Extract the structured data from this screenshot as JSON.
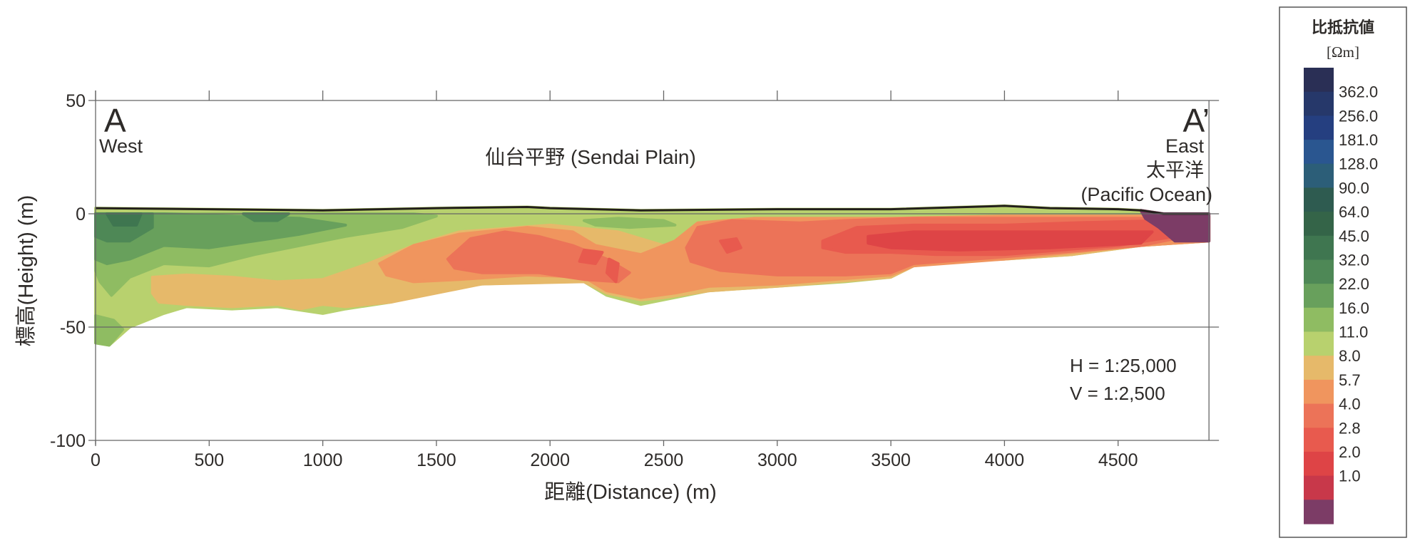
{
  "chart_data": {
    "type": "heatmap",
    "subtype": "resistivity cross-section",
    "title": "仙台平野 (Sendai Plain)",
    "xlabel": "距離(Distance) (m)",
    "ylabel": "標高(Height) (m)",
    "xlim": [
      0,
      4900
    ],
    "ylim": [
      -100,
      50
    ],
    "x_ticks": [
      0,
      500,
      1000,
      1500,
      2000,
      2500,
      3000,
      3500,
      4000,
      4500
    ],
    "x_tick_labels": [
      "0",
      "500",
      "1000",
      "1500",
      "2000",
      "2500",
      "3000",
      "3500",
      "4000",
      "4500"
    ],
    "y_ticks": [
      50,
      0,
      -50,
      -100
    ],
    "y_tick_labels": [
      "50",
      "0",
      "-50",
      "-100"
    ],
    "grid": "horizontal at y ticks",
    "annotations": {
      "left_point": "A",
      "left_dir": "West",
      "right_point": "A’",
      "right_dir": "East",
      "right_place_jp": "太平洋",
      "right_place_en": "(Pacific Ocean)",
      "scale_h": "H = 1:25,000",
      "scale_v": "V = 1:2,500"
    },
    "colorbar": {
      "title": "比抵抗値",
      "unit": "[Ωm]",
      "levels": [
        "362.0",
        "256.0",
        "181.0",
        "128.0",
        "90.0",
        "64.0",
        "45.0",
        "32.0",
        "22.0",
        "16.0",
        "11.0",
        "8.0",
        "5.7",
        "4.0",
        "2.8",
        "2.0",
        "1.0"
      ],
      "colors": [
        "#2a2f55",
        "#26386a",
        "#253f80",
        "#2a5690",
        "#2c5e78",
        "#2e5b50",
        "#346448",
        "#3f7650",
        "#4e8856",
        "#68a05c",
        "#8fbc62",
        "#b8d16e",
        "#e6b96a",
        "#f0955e",
        "#ec7358",
        "#e85a4e",
        "#de4446",
        "#c8384a",
        "#7c3c66"
      ],
      "legend_position": "right"
    },
    "topography": [
      [
        0,
        2.5
      ],
      [
        500,
        2
      ],
      [
        1000,
        1.5
      ],
      [
        1500,
        2.5
      ],
      [
        1900,
        3
      ],
      [
        2000,
        2.5
      ],
      [
        2400,
        1.5
      ],
      [
        3000,
        2
      ],
      [
        3500,
        2
      ],
      [
        4000,
        3.5
      ],
      [
        4200,
        2.5
      ],
      [
        4500,
        2
      ],
      [
        4600,
        1.5
      ],
      [
        4700,
        0
      ],
      [
        4900,
        0
      ]
    ],
    "data_bottom": [
      [
        4900,
        -12
      ],
      [
        4600,
        -14
      ],
      [
        4300,
        -18
      ],
      [
        4000,
        -20
      ],
      [
        3750,
        -21
      ],
      [
        3600,
        -23
      ],
      [
        3500,
        -28
      ],
      [
        3300,
        -30
      ],
      [
        3000,
        -32
      ],
      [
        2700,
        -34
      ],
      [
        2500,
        -38
      ],
      [
        2400,
        -40
      ],
      [
        2250,
        -36
      ],
      [
        2150,
        -30
      ],
      [
        2000,
        -30
      ],
      [
        1700,
        -31
      ],
      [
        1500,
        -34
      ],
      [
        1300,
        -39
      ],
      [
        1100,
        -42
      ],
      [
        1000,
        -44
      ],
      [
        800,
        -41
      ],
      [
        600,
        -42
      ],
      [
        400,
        -41
      ],
      [
        300,
        -44
      ],
      [
        150,
        -50
      ],
      [
        60,
        -58
      ],
      [
        0,
        -57
      ]
    ],
    "regions": [
      {
        "range": "11-16",
        "color_index": 11,
        "points": "body"
      },
      {
        "range": "8-11",
        "color_index": 12,
        "points": [
          [
            250,
            -28
          ],
          [
            400,
            -27
          ],
          [
            600,
            -28
          ],
          [
            800,
            -30
          ],
          [
            1000,
            -29
          ],
          [
            1200,
            -22
          ],
          [
            1400,
            -14
          ],
          [
            1600,
            -8
          ],
          [
            2000,
            -5
          ],
          [
            2300,
            -8
          ],
          [
            2500,
            -14
          ],
          [
            2700,
            -8
          ],
          [
            3000,
            -4
          ],
          [
            3500,
            -3
          ],
          [
            4000,
            -1
          ],
          [
            4900,
            -1
          ],
          [
            4900,
            -12
          ],
          [
            4600,
            -14
          ],
          [
            4300,
            -18
          ],
          [
            4000,
            -20
          ],
          [
            3750,
            -21
          ],
          [
            3600,
            -23
          ],
          [
            3500,
            -28
          ],
          [
            3000,
            -32
          ],
          [
            2700,
            -34
          ],
          [
            2500,
            -37
          ],
          [
            2400,
            -38
          ],
          [
            2250,
            -35
          ],
          [
            2150,
            -30
          ],
          [
            1700,
            -31
          ],
          [
            1300,
            -39
          ],
          [
            1100,
            -41
          ],
          [
            1000,
            -40
          ],
          [
            900,
            -42
          ],
          [
            800,
            -40
          ],
          [
            600,
            -41
          ],
          [
            400,
            -40
          ],
          [
            280,
            -39
          ],
          [
            250,
            -35
          ]
        ]
      },
      {
        "range": "5.7-8",
        "color_index": 13,
        "points": [
          [
            1250,
            -22
          ],
          [
            1400,
            -14
          ],
          [
            1600,
            -9
          ],
          [
            1900,
            -6
          ],
          [
            2100,
            -8
          ],
          [
            2200,
            -14
          ],
          [
            2400,
            -18
          ],
          [
            2550,
            -12
          ],
          [
            2650,
            -4
          ],
          [
            2900,
            -2
          ],
          [
            3500,
            -2
          ],
          [
            4000,
            -1
          ],
          [
            4900,
            -1
          ],
          [
            4900,
            -12
          ],
          [
            4600,
            -14
          ],
          [
            4000,
            -20
          ],
          [
            3600,
            -23
          ],
          [
            3500,
            -27
          ],
          [
            3000,
            -31
          ],
          [
            2700,
            -32
          ],
          [
            2550,
            -35
          ],
          [
            2400,
            -37
          ],
          [
            2250,
            -34
          ],
          [
            2150,
            -28
          ],
          [
            1900,
            -27
          ],
          [
            1600,
            -29
          ],
          [
            1400,
            -30
          ],
          [
            1280,
            -27
          ]
        ]
      },
      {
        "range": "4.0-5.7",
        "color_index": 14,
        "points": [
          [
            1550,
            -20
          ],
          [
            1650,
            -11
          ],
          [
            1800,
            -8
          ],
          [
            1950,
            -10
          ],
          [
            2100,
            -14
          ],
          [
            2250,
            -20
          ],
          [
            2350,
            -26
          ],
          [
            2300,
            -30
          ],
          [
            2150,
            -29
          ],
          [
            1950,
            -26
          ],
          [
            1700,
            -26
          ],
          [
            1580,
            -24
          ]
        ]
      },
      {
        "range": "4.0-5.7",
        "color_index": 14,
        "points": [
          [
            2600,
            -15
          ],
          [
            2650,
            -6
          ],
          [
            2800,
            -3
          ],
          [
            3100,
            -4
          ],
          [
            3300,
            -3
          ],
          [
            3600,
            -2
          ],
          [
            4000,
            -2
          ],
          [
            4700,
            -2
          ],
          [
            4800,
            -10
          ],
          [
            4600,
            -14
          ],
          [
            4000,
            -19
          ],
          [
            3600,
            -22
          ],
          [
            3500,
            -26
          ],
          [
            3300,
            -27
          ],
          [
            3000,
            -27
          ],
          [
            2750,
            -25
          ],
          [
            2620,
            -21
          ]
        ]
      },
      {
        "range": "2.8-4.0",
        "color_index": 15,
        "points": [
          [
            2150,
            -16
          ],
          [
            2230,
            -17
          ],
          [
            2200,
            -22
          ],
          [
            2130,
            -21
          ]
        ]
      },
      {
        "range": "2.8-4.0",
        "color_index": 15,
        "points": [
          [
            2260,
            -20
          ],
          [
            2300,
            -22
          ],
          [
            2290,
            -30
          ],
          [
            2250,
            -26
          ]
        ]
      },
      {
        "range": "2.8-4.0",
        "color_index": 15,
        "points": [
          [
            2750,
            -12
          ],
          [
            2820,
            -11
          ],
          [
            2840,
            -15
          ],
          [
            2780,
            -17
          ]
        ]
      },
      {
        "range": "2.8-4.0",
        "color_index": 15,
        "points": [
          [
            3200,
            -12
          ],
          [
            3350,
            -6
          ],
          [
            3600,
            -5
          ],
          [
            4000,
            -5
          ],
          [
            4300,
            -4
          ],
          [
            4700,
            -3
          ],
          [
            4750,
            -10
          ],
          [
            4500,
            -14
          ],
          [
            4000,
            -18
          ],
          [
            3700,
            -18
          ],
          [
            3500,
            -17
          ],
          [
            3300,
            -17
          ],
          [
            3200,
            -15
          ]
        ]
      },
      {
        "range": "2.0-2.8",
        "color_index": 16,
        "points": [
          [
            3400,
            -10
          ],
          [
            3600,
            -8
          ],
          [
            4100,
            -8
          ],
          [
            4650,
            -8
          ],
          [
            4600,
            -13
          ],
          [
            4200,
            -15
          ],
          [
            3800,
            -16
          ],
          [
            3500,
            -15
          ],
          [
            3400,
            -13
          ]
        ]
      },
      {
        "range": "<1.0",
        "color_index": 18,
        "points": [
          [
            4600,
            1.5
          ],
          [
            4700,
            0
          ],
          [
            4900,
            0
          ],
          [
            4900,
            -12
          ],
          [
            4750,
            -12
          ],
          [
            4680,
            -6
          ],
          [
            4620,
            -2
          ]
        ]
      },
      {
        "range": "16-22",
        "color_index": 10,
        "points": [
          [
            0,
            0
          ],
          [
            1400,
            0
          ],
          [
            1500,
            -1
          ],
          [
            1350,
            -6
          ],
          [
            1100,
            -10
          ],
          [
            900,
            -14
          ],
          [
            700,
            -18
          ],
          [
            500,
            -23
          ],
          [
            300,
            -22
          ],
          [
            150,
            -28
          ],
          [
            70,
            -36
          ],
          [
            20,
            -30
          ],
          [
            0,
            -25
          ]
        ]
      },
      {
        "range": "16-22",
        "color_index": 10,
        "points": [
          [
            0,
            -45
          ],
          [
            80,
            -47
          ],
          [
            120,
            -51
          ],
          [
            60,
            -58
          ],
          [
            0,
            -57
          ]
        ]
      },
      {
        "range": "16-22",
        "color_index": 10,
        "points": [
          [
            2150,
            -3
          ],
          [
            2300,
            -2
          ],
          [
            2500,
            -3
          ],
          [
            2550,
            -5
          ],
          [
            2350,
            -6
          ],
          [
            2200,
            -5
          ]
        ]
      },
      {
        "range": "22-32",
        "color_index": 9,
        "points": [
          [
            0,
            0
          ],
          [
            300,
            0
          ],
          [
            600,
            -1
          ],
          [
            900,
            -2
          ],
          [
            1100,
            -5
          ],
          [
            900,
            -9
          ],
          [
            700,
            -12
          ],
          [
            500,
            -15
          ],
          [
            300,
            -14
          ],
          [
            150,
            -20
          ],
          [
            50,
            -22
          ],
          [
            0,
            -20
          ]
        ]
      },
      {
        "range": "32-45",
        "color_index": 8,
        "points": [
          [
            0,
            0
          ],
          [
            250,
            0
          ],
          [
            250,
            -6
          ],
          [
            150,
            -12
          ],
          [
            50,
            -12
          ],
          [
            0,
            -10
          ]
        ]
      },
      {
        "range": "32-45",
        "color_index": 8,
        "points": [
          [
            650,
            0
          ],
          [
            850,
            0
          ],
          [
            800,
            -3
          ],
          [
            700,
            -3
          ]
        ]
      },
      {
        "range": "45-64",
        "color_index": 7,
        "points": [
          [
            50,
            0
          ],
          [
            200,
            0
          ],
          [
            180,
            -5
          ],
          [
            80,
            -5
          ]
        ]
      }
    ]
  }
}
